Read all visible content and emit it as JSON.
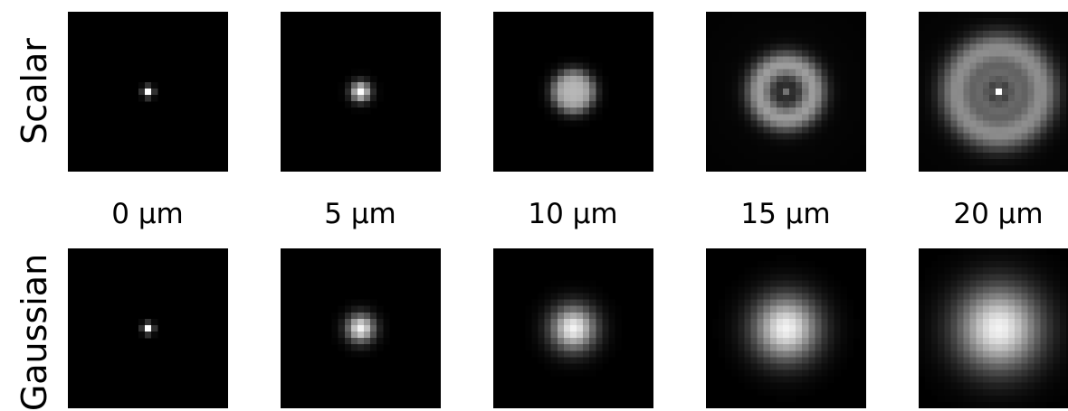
{
  "rows": [
    "Scalar",
    "Gaussian"
  ],
  "depths": [
    "0 µm",
    "5 µm",
    "10 µm",
    "15 µm",
    "20 µm"
  ],
  "panel_grid_cells": 25,
  "profiles": {
    "Scalar": [
      {
        "type": "spot",
        "sigma": 0.55,
        "peak": 1.0
      },
      {
        "type": "spot",
        "sigma": 1.05,
        "peak": 1.0
      },
      {
        "type": "disk",
        "radius": 3.2,
        "edge": 1.2,
        "level": 0.72
      },
      {
        "type": "rings",
        "rings": [
          {
            "r": 4.2,
            "w": 1.5,
            "level": 0.58
          }
        ],
        "center": {
          "sigma": 0.55,
          "level": 0.38
        },
        "halo": 0.06
      },
      {
        "type": "rings",
        "rings": [
          {
            "r": 6.6,
            "w": 1.9,
            "level": 0.52
          },
          {
            "r": 2.6,
            "w": 1.1,
            "level": 0.28
          }
        ],
        "center": {
          "sigma": 0.5,
          "level": 0.95
        },
        "halo": 0.09
      }
    ],
    "Gaussian": [
      {
        "type": "spot",
        "sigma": 0.55,
        "peak": 1.0
      },
      {
        "type": "spot",
        "sigma": 1.5,
        "peak": 0.95
      },
      {
        "type": "spot",
        "sigma": 2.4,
        "peak": 0.95
      },
      {
        "type": "spot",
        "sigma": 3.5,
        "peak": 0.95
      },
      {
        "type": "spot",
        "sigma": 4.5,
        "peak": 0.95
      }
    ]
  }
}
